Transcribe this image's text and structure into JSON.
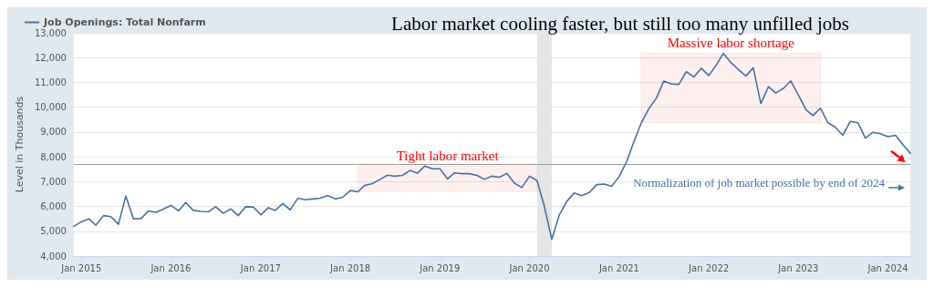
{
  "chart_data": {
    "type": "line",
    "title": "Labor market cooling faster, but still too many unfilled jobs",
    "ylabel": "Level in Thousands",
    "legend": "top left",
    "grid": "y",
    "marker": "none",
    "line_style": "solid",
    "x": [
      "2014-12",
      "2015-01",
      "2015-02",
      "2015-03",
      "2015-04",
      "2015-05",
      "2015-06",
      "2015-07",
      "2015-08",
      "2015-09",
      "2015-10",
      "2015-11",
      "2015-12",
      "2016-01",
      "2016-02",
      "2016-03",
      "2016-04",
      "2016-05",
      "2016-06",
      "2016-07",
      "2016-08",
      "2016-09",
      "2016-10",
      "2016-11",
      "2016-12",
      "2017-01",
      "2017-02",
      "2017-03",
      "2017-04",
      "2017-05",
      "2017-06",
      "2017-07",
      "2017-08",
      "2017-09",
      "2017-10",
      "2017-11",
      "2017-12",
      "2018-01",
      "2018-02",
      "2018-03",
      "2018-04",
      "2018-05",
      "2018-06",
      "2018-07",
      "2018-08",
      "2018-09",
      "2018-10",
      "2018-11",
      "2018-12",
      "2019-01",
      "2019-02",
      "2019-03",
      "2019-04",
      "2019-05",
      "2019-06",
      "2019-07",
      "2019-08",
      "2019-09",
      "2019-10",
      "2019-11",
      "2019-12",
      "2020-01",
      "2020-02",
      "2020-03",
      "2020-04",
      "2020-05",
      "2020-06",
      "2020-07",
      "2020-08",
      "2020-09",
      "2020-10",
      "2020-11",
      "2020-12",
      "2021-01",
      "2021-02",
      "2021-03",
      "2021-04",
      "2021-05",
      "2021-06",
      "2021-07",
      "2021-08",
      "2021-09",
      "2021-10",
      "2021-11",
      "2021-12",
      "2022-01",
      "2022-02",
      "2022-03",
      "2022-04",
      "2022-05",
      "2022-06",
      "2022-07",
      "2022-08",
      "2022-09",
      "2022-10",
      "2022-11",
      "2022-12",
      "2023-01",
      "2023-02",
      "2023-03",
      "2023-04",
      "2023-05",
      "2023-06",
      "2023-07",
      "2023-08",
      "2023-09",
      "2023-10",
      "2023-11",
      "2023-12",
      "2024-01",
      "2024-02",
      "2024-03",
      "2024-04"
    ],
    "series": [
      {
        "name": "Job Openings: Total Nonfarm",
        "color": "#4572a7",
        "values": [
          5200,
          5380,
          5500,
          5240,
          5630,
          5590,
          5280,
          6420,
          5500,
          5510,
          5820,
          5760,
          5890,
          6040,
          5820,
          6160,
          5840,
          5800,
          5780,
          5990,
          5720,
          5900,
          5630,
          5990,
          5980,
          5660,
          5950,
          5840,
          6120,
          5860,
          6330,
          6270,
          6300,
          6330,
          6440,
          6300,
          6370,
          6640,
          6590,
          6850,
          6920,
          7080,
          7260,
          7220,
          7250,
          7450,
          7340,
          7630,
          7520,
          7520,
          7110,
          7350,
          7320,
          7320,
          7250,
          7090,
          7220,
          7180,
          7330,
          6940,
          6760,
          7220,
          7040,
          6030,
          4670,
          5640,
          6200,
          6540,
          6430,
          6560,
          6880,
          6900,
          6810,
          7210,
          7830,
          8590,
          9370,
          9930,
          10360,
          11050,
          10940,
          10920,
          11430,
          11220,
          11570,
          11280,
          11710,
          12170,
          11800,
          11520,
          11260,
          11590,
          10150,
          10830,
          10570,
          10760,
          11060,
          10490,
          9900,
          9660,
          9960,
          9380,
          9190,
          8870,
          9430,
          9370,
          8750,
          8990,
          8930,
          8810,
          8870,
          8500,
          8140
        ]
      }
    ],
    "xlim": [
      "2014-12",
      "2024-04"
    ],
    "xticks": [
      {
        "value": "2015-01",
        "label": "Jan 2015"
      },
      {
        "value": "2016-01",
        "label": "Jan 2016"
      },
      {
        "value": "2017-01",
        "label": "Jan 2017"
      },
      {
        "value": "2018-01",
        "label": "Jan 2018"
      },
      {
        "value": "2019-01",
        "label": "Jan 2019"
      },
      {
        "value": "2020-01",
        "label": "Jan 2020"
      },
      {
        "value": "2021-01",
        "label": "Jan 2021"
      },
      {
        "value": "2022-01",
        "label": "Jan 2022"
      },
      {
        "value": "2023-01",
        "label": "Jan 2023"
      },
      {
        "value": "2024-01",
        "label": "Jan 2024"
      }
    ],
    "ylim": [
      4000,
      13000
    ],
    "yticks": [
      {
        "value": 4000,
        "label": "4,000"
      },
      {
        "value": 5000,
        "label": "5,000"
      },
      {
        "value": 6000,
        "label": "6,000"
      },
      {
        "value": 7000,
        "label": "7,000"
      },
      {
        "value": 8000,
        "label": "8,000"
      },
      {
        "value": 9000,
        "label": "9,000"
      },
      {
        "value": 10000,
        "label": "10,000"
      },
      {
        "value": 11000,
        "label": "11,000"
      },
      {
        "value": 12000,
        "label": "12,000"
      },
      {
        "value": 13000,
        "label": "13,000"
      }
    ],
    "bands": [
      {
        "axis": "x",
        "from": "2020-02",
        "to": "2020-04",
        "color": "#e5e5e5"
      },
      {
        "axis": "x",
        "from": "2018-02",
        "to": "2020-02",
        "label": "Tight labor market",
        "color": "#ff0000"
      },
      {
        "axis": "x",
        "from": "2021-04",
        "to": "2023-04",
        "label": "Massive labor shortage",
        "color": "#ff0000"
      }
    ],
    "ref_lines": [
      {
        "axis": "y",
        "value": 7700,
        "label": "Normalization of job market possible by end of 2024",
        "color": "#999999"
      }
    ]
  }
}
